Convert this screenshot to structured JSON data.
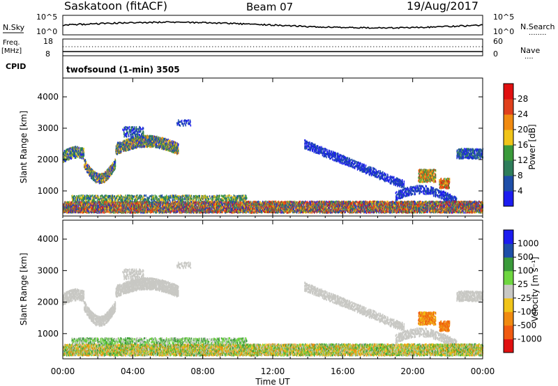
{
  "header": {
    "station": "Saskatoon (fitACF)",
    "beam": "Beam 07",
    "date": "19/Aug/2017"
  },
  "noise_panel": {
    "left_label": "N.Sky",
    "right_label": "N.Search",
    "right_legend_dots": "........",
    "tick_top": "10^5",
    "tick_bottom": "10^0"
  },
  "freq_panel": {
    "left_label_1": "Freq.",
    "left_label_2": "[MHz]",
    "left_tick_top": "18",
    "left_tick_bottom": "8",
    "right_label": "Nave",
    "right_legend_dots": "....",
    "right_tick_top": "60",
    "right_tick_bottom": "0"
  },
  "cpid": {
    "label": "CPID",
    "value": "twofsound (1-min) 3505"
  },
  "time_axis": {
    "label": "Time UT",
    "ticks": [
      "00:00",
      "04:00",
      "08:00",
      "12:00",
      "16:00",
      "20:00",
      "00:00"
    ]
  },
  "colors": {
    "power_scale": [
      "#1c1cf0",
      "#1e4ea8",
      "#2e7d5a",
      "#3a9a3a",
      "#f0c419",
      "#f08a10",
      "#e0401c",
      "#e01010"
    ],
    "velocity_scale": [
      "#e01010",
      "#f05a10",
      "#f08a10",
      "#f0c419",
      "#c8c8c4",
      "#6ed640",
      "#3a9a3a",
      "#1e4ea8",
      "#1c1cf0"
    ]
  },
  "chart_data": [
    {
      "type": "heatmap",
      "name": "power",
      "ylabel": "Slant Range [km]",
      "xlabel": "",
      "y_ticks": [
        1000,
        2000,
        3000,
        4000
      ],
      "ylim": [
        200,
        4600
      ],
      "xlim_hours": [
        0,
        24
      ],
      "colorbar_label": "Power [dB]",
      "colorbar_ticks": [
        "4",
        "8",
        "12",
        "16",
        "20",
        "24",
        "28"
      ],
      "colorbar_range": [
        0,
        32
      ],
      "grid": false
    },
    {
      "type": "heatmap",
      "name": "velocity",
      "ylabel": "Slant Range [km]",
      "xlabel": "Time UT",
      "y_ticks": [
        1000,
        2000,
        3000,
        4000
      ],
      "ylim": [
        200,
        4600
      ],
      "xlim_hours": [
        0,
        24
      ],
      "colorbar_label": "Velocity [m s⁻¹]",
      "colorbar_ticks": [
        "-1000",
        "-500",
        "-100",
        "-25",
        "25",
        "100",
        "500",
        "1000"
      ],
      "grid": false
    }
  ]
}
